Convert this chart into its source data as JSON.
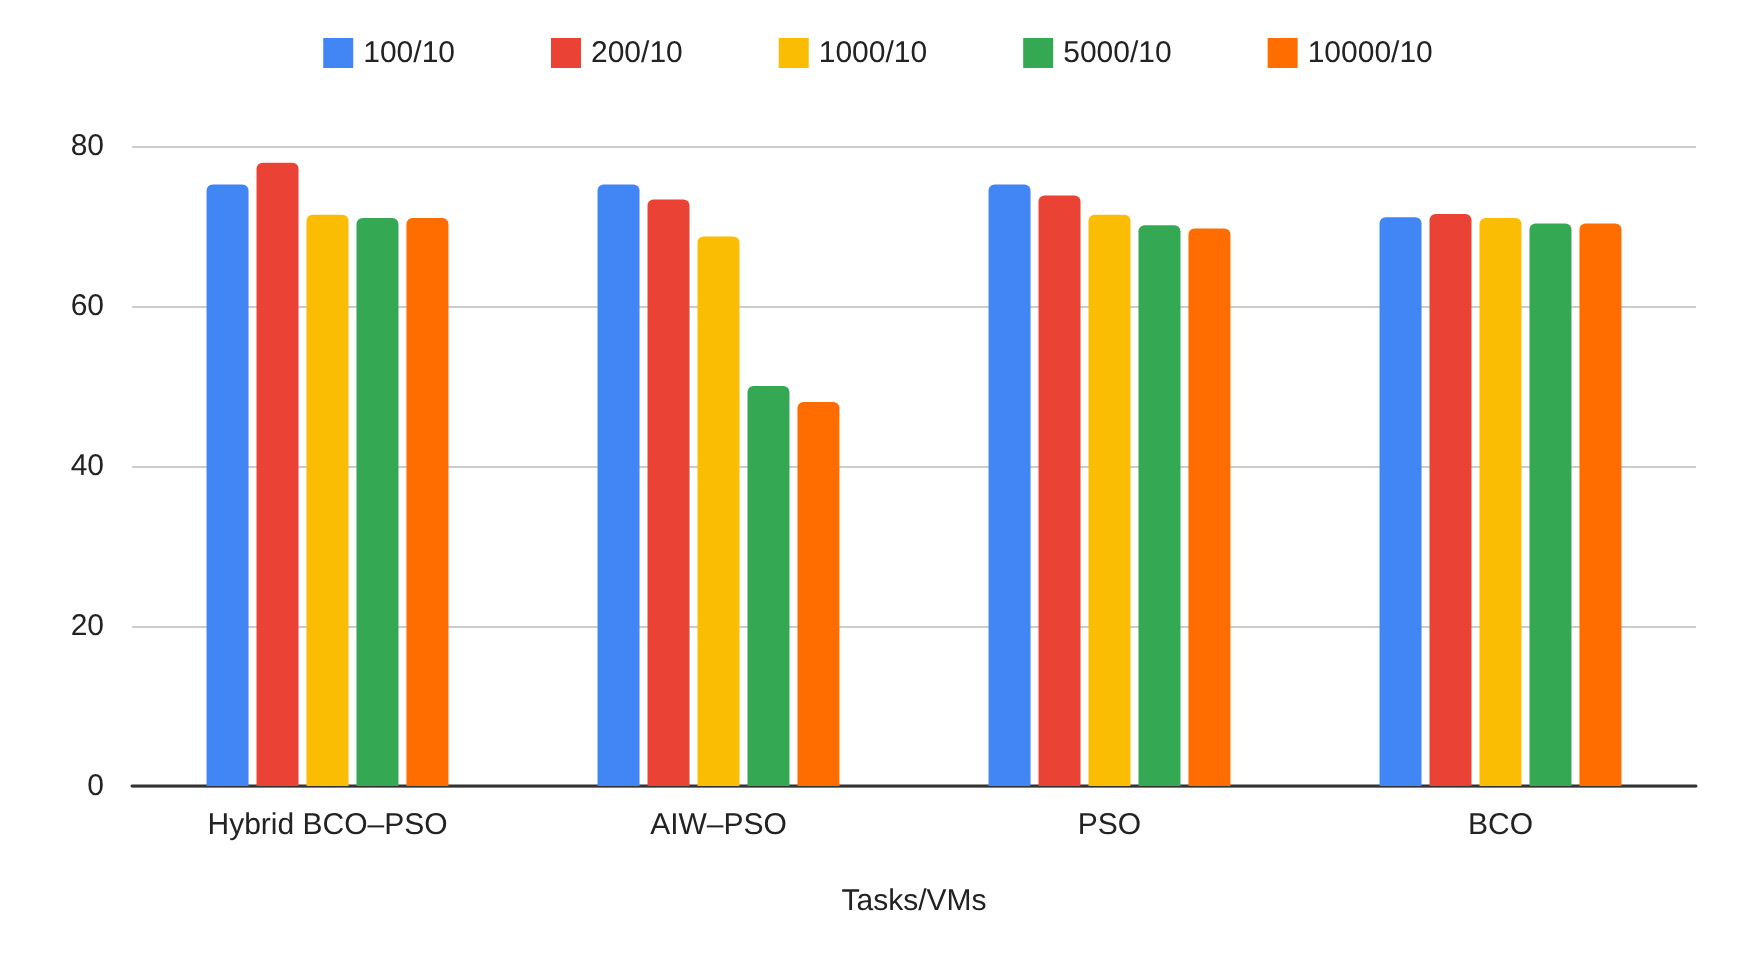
{
  "chart_data": {
    "type": "bar",
    "xlabel": "Tasks/VMs",
    "categories": [
      "Hybrid BCO–PSO",
      "AIW–PSO",
      "PSO",
      "BCO"
    ],
    "series": [
      {
        "name": "100/10",
        "color": "#4285f4",
        "values": [
          75.2,
          75.2,
          75.2,
          71.1
        ]
      },
      {
        "name": "200/10",
        "color": "#ea4335",
        "values": [
          77.9,
          73.3,
          73.8,
          71.5
        ]
      },
      {
        "name": "1000/10",
        "color": "#fbbc04",
        "values": [
          71.4,
          68.7,
          71.4,
          71.0
        ]
      },
      {
        "name": "5000/10",
        "color": "#34a853",
        "values": [
          71.0,
          50.0,
          70.1,
          70.3
        ]
      },
      {
        "name": "10000/10",
        "color": "#ff6d01",
        "values": [
          71.0,
          48.0,
          69.7,
          70.3
        ]
      }
    ],
    "ylim": [
      0,
      80
    ],
    "yticks": [
      0,
      20,
      40,
      60,
      80
    ],
    "grid": "y",
    "legend": "top"
  }
}
